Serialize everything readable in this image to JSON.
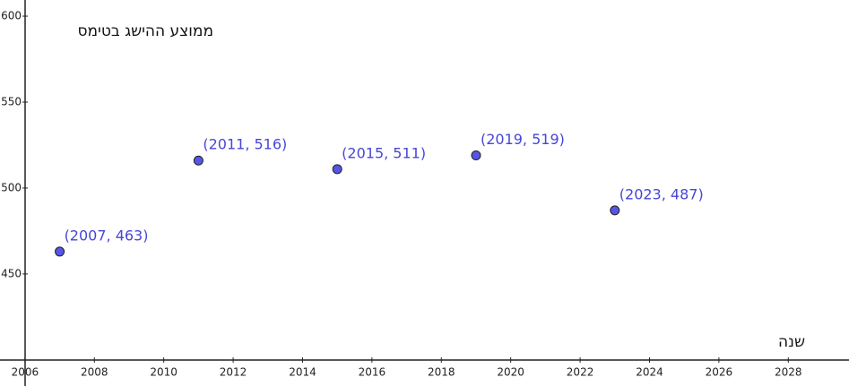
{
  "chart_data": {
    "type": "scatter",
    "x_label": "שנה",
    "y_label": "ממוצע ההישג בטימס",
    "x": [
      2007,
      2011,
      2015,
      2019,
      2023
    ],
    "values": [
      463,
      516,
      511,
      519,
      487
    ],
    "value_labels": [
      "(2007, 463)",
      "(2011, 516)",
      "(2015, 511)",
      "(2019, 519)",
      "(2023, 487)"
    ],
    "color": "#5555e8",
    "xlim": [
      2005.28,
      2029.75
    ],
    "ylim": [
      384.8,
      609.4
    ],
    "xticks": [
      2006,
      2008,
      2010,
      2012,
      2014,
      2016,
      2018,
      2020,
      2022,
      2024,
      2026,
      2028
    ],
    "yticks": [
      450,
      500,
      550,
      600
    ]
  }
}
